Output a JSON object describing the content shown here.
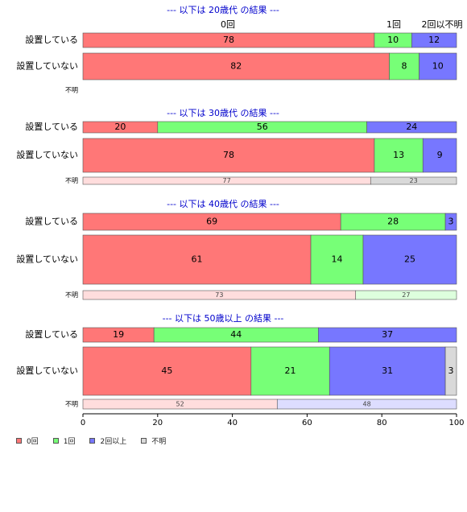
{
  "chart_data": {
    "type": "bar",
    "orientation": "horizontal",
    "stacked": true,
    "percent": true,
    "xlim": [
      0,
      100
    ],
    "xticks": [
      0,
      20,
      40,
      60,
      80,
      100
    ],
    "grid": false,
    "legend_position": "bottom-left",
    "categories": [
      "0回",
      "1回",
      "2回以上",
      "不明"
    ],
    "colors": {
      "main": [
        "#ff7777",
        "#77ff77",
        "#7777ff",
        "#d9d9d9"
      ],
      "unknown": [
        "#ffdddd",
        "#ddffdd",
        "#ddddff",
        "#eeeeee"
      ],
      "title": "#0000cc"
    },
    "top_category_labels": [
      "0回",
      "1回",
      "2回以不明"
    ],
    "panels": [
      {
        "title": "--- 以下は 20歳代 の結果 ---",
        "rows": [
          {
            "label": "設置している",
            "values": [
              78,
              10,
              12
            ]
          },
          {
            "label": "設置していない",
            "values": [
              82,
              8,
              10
            ]
          }
        ],
        "unknown": {
          "label": "不明",
          "values": []
        }
      },
      {
        "title": "--- 以下は 30歳代 の結果 ---",
        "rows": [
          {
            "label": "設置している",
            "values": [
              20,
              56,
              24
            ]
          },
          {
            "label": "設置していない",
            "values": [
              78,
              13,
              9
            ]
          }
        ],
        "unknown": {
          "label": "不明",
          "values": [
            77,
            23
          ],
          "colors": [
            "#ffdddd",
            "#d9d9d9"
          ]
        }
      },
      {
        "title": "--- 以下は 40歳代 の結果 ---",
        "rows": [
          {
            "label": "設置している",
            "values": [
              69,
              28,
              3
            ]
          },
          {
            "label": "設置していない",
            "values": [
              61,
              14,
              25
            ]
          }
        ],
        "unknown": {
          "label": "不明",
          "values": [
            73,
            27
          ],
          "colors": [
            "#ffdddd",
            "#ddffdd"
          ]
        }
      },
      {
        "title": "--- 以下は 50歳以上 の結果 ---",
        "rows": [
          {
            "label": "設置している",
            "values": [
              19,
              44,
              37
            ]
          },
          {
            "label": "設置していない",
            "values": [
              45,
              21,
              31,
              3
            ]
          }
        ],
        "unknown": {
          "label": "不明",
          "values": [
            52,
            48
          ],
          "colors": [
            "#ffdddd",
            "#ddddff"
          ]
        }
      }
    ],
    "legend": [
      {
        "label": "0回",
        "color": "#ff7777"
      },
      {
        "label": "1回",
        "color": "#77ff77"
      },
      {
        "label": "2回以上",
        "color": "#7777ff"
      },
      {
        "label": "不明",
        "color": "#d9d9d9"
      }
    ]
  }
}
